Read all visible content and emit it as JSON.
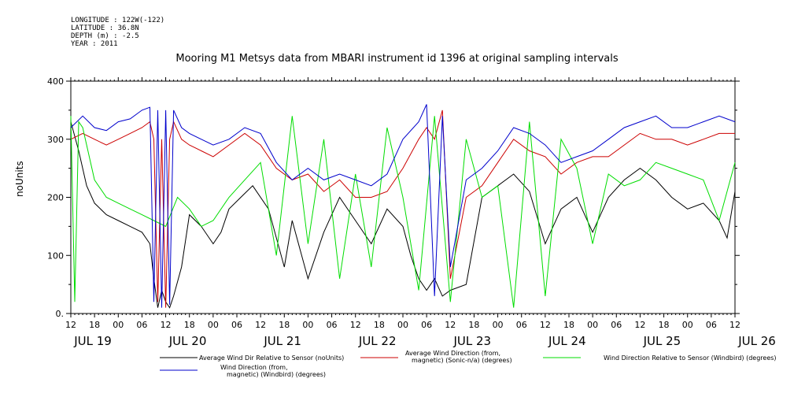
{
  "header": {
    "lines": [
      "LONGITUDE : 122W(-122)",
      "LATITUDE : 36.8N",
      "DEPTH (m) : -2.5",
      "YEAR : 2011"
    ]
  },
  "chart_data": {
    "type": "line",
    "title": "Mooring M1 Metsys data from MBARI instrument id 1396 at original sampling intervals",
    "ylabel": "noUnits",
    "xlabel": "",
    "ylim": [
      0,
      400
    ],
    "y_ticks": [
      0,
      100,
      200,
      300,
      400
    ],
    "y_tick_labels": [
      "0.",
      "100",
      "200",
      "300",
      "400"
    ],
    "x_range_hours": [
      0,
      168
    ],
    "x_hour_ticks": [
      "12",
      "18",
      "00",
      "06",
      "12",
      "18",
      "00",
      "06",
      "12",
      "18",
      "00",
      "06",
      "12",
      "18",
      "00",
      "06",
      "12",
      "18",
      "00",
      "06",
      "12",
      "18",
      "00",
      "06",
      "12",
      "18",
      "00",
      "06",
      "12"
    ],
    "x_date_labels": [
      {
        "label": "JUL 19",
        "hour": 0
      },
      {
        "label": "JUL 20",
        "hour": 24
      },
      {
        "label": "JUL 21",
        "hour": 48
      },
      {
        "label": "JUL 22",
        "hour": 72
      },
      {
        "label": "JUL 23",
        "hour": 96
      },
      {
        "label": "JUL 24",
        "hour": 120
      },
      {
        "label": "JUL 25",
        "hour": 144
      },
      {
        "label": "JUL 26",
        "hour": 168
      }
    ],
    "grid": false,
    "legend_position": "bottom",
    "series": [
      {
        "name": "Average Wind Dir Relative to Sensor (noUnits)",
        "color": "#000000",
        "x": [
          0,
          2,
          4,
          6,
          9,
          12,
          15,
          18,
          20,
          21,
          22,
          23,
          24,
          25,
          26,
          28,
          30,
          33,
          36,
          38,
          40,
          43,
          46,
          50,
          54,
          56,
          60,
          64,
          68,
          72,
          76,
          80,
          84,
          86,
          88,
          90,
          92,
          94,
          96,
          100,
          104,
          108,
          112,
          116,
          120,
          124,
          128,
          132,
          136,
          140,
          144,
          148,
          152,
          156,
          160,
          164,
          166,
          168
        ],
        "y": [
          330,
          280,
          220,
          190,
          170,
          160,
          150,
          140,
          120,
          60,
          10,
          40,
          20,
          10,
          30,
          80,
          170,
          150,
          120,
          140,
          180,
          200,
          220,
          180,
          80,
          160,
          60,
          140,
          200,
          160,
          120,
          180,
          150,
          100,
          60,
          40,
          60,
          30,
          40,
          50,
          200,
          220,
          240,
          210,
          120,
          180,
          200,
          140,
          200,
          230,
          250,
          230,
          200,
          180,
          190,
          160,
          130,
          210
        ]
      },
      {
        "name": "Average Wind Direction (from, magnetic) (Sonic-n/a) (degrees)",
        "color": "#cc0000",
        "x": [
          0,
          3,
          6,
          9,
          12,
          15,
          18,
          20,
          21,
          22,
          23,
          24,
          25,
          26,
          28,
          30,
          33,
          36,
          40,
          44,
          48,
          52,
          56,
          60,
          64,
          68,
          72,
          76,
          80,
          84,
          88,
          90,
          92,
          94,
          96,
          100,
          104,
          108,
          112,
          116,
          120,
          124,
          128,
          132,
          136,
          140,
          144,
          148,
          152,
          156,
          160,
          164,
          168
        ],
        "y": [
          300,
          310,
          300,
          290,
          300,
          310,
          320,
          330,
          300,
          20,
          300,
          10,
          300,
          330,
          300,
          290,
          280,
          270,
          290,
          310,
          290,
          250,
          230,
          240,
          210,
          230,
          200,
          200,
          210,
          250,
          300,
          320,
          300,
          350,
          60,
          200,
          220,
          260,
          300,
          280,
          270,
          240,
          260,
          270,
          270,
          290,
          310,
          300,
          300,
          290,
          300,
          310,
          310
        ]
      },
      {
        "name": "Wind Direction Relative to Sensor (Windbird) (degrees)",
        "color": "#00dd00",
        "x": [
          0,
          1,
          2,
          3,
          6,
          9,
          12,
          15,
          18,
          21,
          24,
          27,
          30,
          33,
          36,
          40,
          44,
          48,
          52,
          56,
          60,
          64,
          68,
          72,
          76,
          80,
          84,
          88,
          92,
          96,
          100,
          104,
          108,
          112,
          116,
          120,
          124,
          128,
          132,
          136,
          140,
          144,
          148,
          152,
          156,
          160,
          164,
          168
        ],
        "y": [
          340,
          20,
          330,
          320,
          230,
          200,
          190,
          180,
          170,
          160,
          150,
          200,
          180,
          150,
          160,
          200,
          230,
          260,
          100,
          340,
          120,
          300,
          60,
          240,
          80,
          320,
          200,
          40,
          340,
          20,
          300,
          200,
          220,
          10,
          330,
          30,
          300,
          250,
          120,
          240,
          220,
          230,
          260,
          250,
          240,
          230,
          160,
          260
        ]
      },
      {
        "name": "Wind Direction (from, magnetic) (Windbird) (degrees)",
        "color": "#0000cc",
        "x": [
          0,
          3,
          6,
          9,
          12,
          15,
          18,
          20,
          21,
          22,
          23,
          24,
          25,
          26,
          28,
          30,
          33,
          36,
          40,
          44,
          48,
          52,
          56,
          60,
          64,
          68,
          72,
          76,
          80,
          84,
          88,
          90,
          92,
          94,
          96,
          100,
          104,
          108,
          112,
          116,
          120,
          124,
          128,
          132,
          136,
          140,
          144,
          148,
          152,
          156,
          160,
          164,
          168
        ],
        "y": [
          320,
          340,
          320,
          315,
          330,
          335,
          350,
          355,
          20,
          350,
          10,
          350,
          15,
          350,
          320,
          310,
          300,
          290,
          300,
          320,
          310,
          260,
          230,
          250,
          230,
          240,
          230,
          220,
          240,
          300,
          330,
          360,
          30,
          340,
          80,
          230,
          250,
          280,
          320,
          310,
          290,
          260,
          270,
          280,
          300,
          320,
          330,
          340,
          320,
          320,
          330,
          340,
          330
        ]
      }
    ]
  },
  "legend": {
    "items": [
      {
        "label1": "Average Wind Dir Relative to Sensor (noUnits)",
        "label2": ""
      },
      {
        "label1": "Average Wind Direction (from,",
        "label2": "magnetic) (Sonic-n/a) (degrees)"
      },
      {
        "label1": "Wind Direction Relative to Sensor (Windbird) (degrees)",
        "label2": ""
      },
      {
        "label1": "Wind Direction (from,",
        "label2": "magnetic) (Windbird) (degrees)"
      }
    ]
  }
}
